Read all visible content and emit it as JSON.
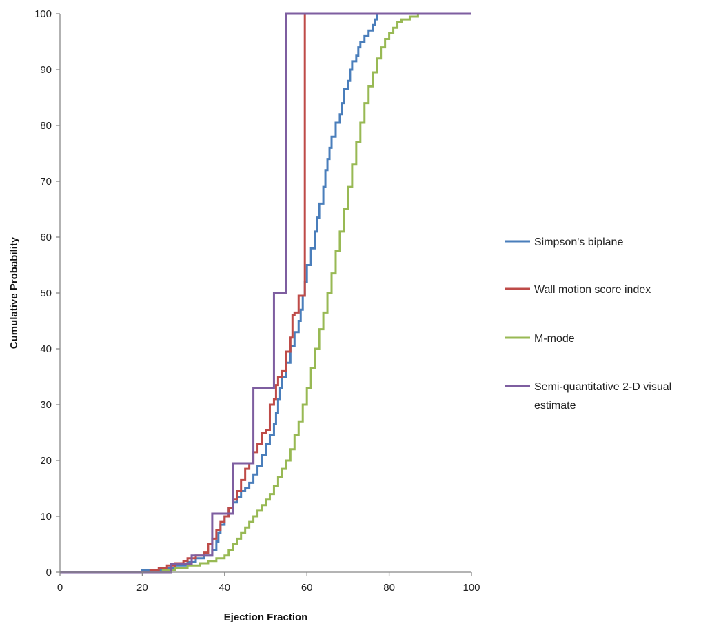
{
  "chart_data": {
    "type": "line",
    "title": "",
    "xlabel": "Ejection Fraction",
    "ylabel": "Cumulative Probability",
    "xlim": [
      0,
      100
    ],
    "ylim": [
      0,
      100
    ],
    "x_ticks": [
      0,
      20,
      40,
      60,
      80,
      100
    ],
    "y_ticks": [
      0,
      10,
      20,
      30,
      40,
      50,
      60,
      70,
      80,
      90,
      100
    ],
    "x_tick_labels": [
      "0",
      "20",
      "40",
      "60",
      "80",
      "100"
    ],
    "y_tick_labels": [
      "0",
      "10",
      "20",
      "30",
      "40",
      "50",
      "60",
      "70",
      "80",
      "90",
      "100"
    ],
    "grid": false,
    "legend_position": "right",
    "step": true,
    "series": [
      {
        "name": "Simpson's biplane",
        "color": "#4a7ebb",
        "points": [
          [
            0,
            0
          ],
          [
            20,
            0
          ],
          [
            20,
            0.4
          ],
          [
            25,
            0.4
          ],
          [
            25,
            0.8
          ],
          [
            28,
            0.8
          ],
          [
            28,
            1.2
          ],
          [
            31,
            1.2
          ],
          [
            31,
            1.8
          ],
          [
            33,
            1.8
          ],
          [
            33,
            2.5
          ],
          [
            35,
            2.5
          ],
          [
            35,
            3
          ],
          [
            37,
            3
          ],
          [
            37,
            4
          ],
          [
            38,
            4
          ],
          [
            38,
            5.5
          ],
          [
            38.5,
            5.5
          ],
          [
            38.5,
            7
          ],
          [
            39,
            7
          ],
          [
            39,
            8.5
          ],
          [
            40,
            8.5
          ],
          [
            40,
            10
          ],
          [
            41,
            10
          ],
          [
            41,
            11.5
          ],
          [
            42,
            11.5
          ],
          [
            42,
            12.5
          ],
          [
            43,
            12.5
          ],
          [
            43,
            13.5
          ],
          [
            44,
            13.5
          ],
          [
            44,
            14.5
          ],
          [
            45,
            14.5
          ],
          [
            45,
            15
          ],
          [
            46,
            15
          ],
          [
            46,
            16
          ],
          [
            47,
            16
          ],
          [
            47,
            17.5
          ],
          [
            48,
            17.5
          ],
          [
            48,
            19
          ],
          [
            49,
            19
          ],
          [
            49,
            21
          ],
          [
            50,
            21
          ],
          [
            50,
            23
          ],
          [
            51,
            23
          ],
          [
            51,
            24.5
          ],
          [
            52,
            24.5
          ],
          [
            52,
            26.5
          ],
          [
            52.5,
            26.5
          ],
          [
            52.5,
            28.5
          ],
          [
            53,
            28.5
          ],
          [
            53,
            31
          ],
          [
            53.5,
            31
          ],
          [
            53.5,
            33
          ],
          [
            54,
            33
          ],
          [
            54,
            35
          ],
          [
            55,
            35
          ],
          [
            55,
            37.5
          ],
          [
            56,
            37.5
          ],
          [
            56,
            40.5
          ],
          [
            57,
            40.5
          ],
          [
            57,
            43
          ],
          [
            58,
            43
          ],
          [
            58,
            45
          ],
          [
            58.5,
            45
          ],
          [
            58.5,
            47
          ],
          [
            59,
            47
          ],
          [
            59,
            49.5
          ],
          [
            59.5,
            49.5
          ],
          [
            59.5,
            52
          ],
          [
            60,
            52
          ],
          [
            60,
            55
          ],
          [
            61,
            55
          ],
          [
            61,
            58
          ],
          [
            62,
            58
          ],
          [
            62,
            61
          ],
          [
            62.5,
            61
          ],
          [
            62.5,
            63.5
          ],
          [
            63,
            63.5
          ],
          [
            63,
            66
          ],
          [
            64,
            66
          ],
          [
            64,
            69
          ],
          [
            64.5,
            69
          ],
          [
            64.5,
            72
          ],
          [
            65,
            72
          ],
          [
            65,
            74
          ],
          [
            65.5,
            74
          ],
          [
            65.5,
            76
          ],
          [
            66,
            76
          ],
          [
            66,
            78
          ],
          [
            67,
            78
          ],
          [
            67,
            80.5
          ],
          [
            68,
            80.5
          ],
          [
            68,
            82
          ],
          [
            68.5,
            82
          ],
          [
            68.5,
            84
          ],
          [
            69,
            84
          ],
          [
            69,
            86.5
          ],
          [
            70,
            86.5
          ],
          [
            70,
            88
          ],
          [
            70.5,
            88
          ],
          [
            70.5,
            90
          ],
          [
            71,
            90
          ],
          [
            71,
            91.5
          ],
          [
            72,
            91.5
          ],
          [
            72,
            92.5
          ],
          [
            72.5,
            92.5
          ],
          [
            72.5,
            94
          ],
          [
            73,
            94
          ],
          [
            73,
            95
          ],
          [
            74,
            95
          ],
          [
            74,
            96
          ],
          [
            75,
            96
          ],
          [
            75,
            97
          ],
          [
            76,
            97
          ],
          [
            76,
            98
          ],
          [
            76.5,
            98
          ],
          [
            76.5,
            99
          ],
          [
            77,
            99
          ],
          [
            77,
            100
          ],
          [
            100,
            100
          ]
        ]
      },
      {
        "name": "Wall motion score index",
        "color": "#be4b48",
        "points": [
          [
            0,
            0
          ],
          [
            22,
            0
          ],
          [
            22,
            0.4
          ],
          [
            24,
            0.4
          ],
          [
            24,
            0.8
          ],
          [
            26,
            0.8
          ],
          [
            26,
            1.2
          ],
          [
            28,
            1.2
          ],
          [
            28,
            1.6
          ],
          [
            30,
            1.6
          ],
          [
            30,
            2
          ],
          [
            31,
            2
          ],
          [
            31,
            2.5
          ],
          [
            33,
            2.5
          ],
          [
            33,
            3
          ],
          [
            35,
            3
          ],
          [
            35,
            3.5
          ],
          [
            36,
            3.5
          ],
          [
            36,
            5
          ],
          [
            37,
            5
          ],
          [
            37,
            6
          ],
          [
            38,
            6
          ],
          [
            38,
            7.5
          ],
          [
            39,
            7.5
          ],
          [
            39,
            9
          ],
          [
            40,
            9
          ],
          [
            40,
            10
          ],
          [
            41,
            10
          ],
          [
            41,
            11.5
          ],
          [
            42,
            11.5
          ],
          [
            42,
            13
          ],
          [
            43,
            13
          ],
          [
            43,
            14.5
          ],
          [
            44,
            14.5
          ],
          [
            44,
            16.5
          ],
          [
            45,
            16.5
          ],
          [
            45,
            18.5
          ],
          [
            46,
            18.5
          ],
          [
            46,
            19.5
          ],
          [
            47,
            19.5
          ],
          [
            47,
            21.5
          ],
          [
            48,
            21.5
          ],
          [
            48,
            23
          ],
          [
            49,
            23
          ],
          [
            49,
            25
          ],
          [
            50,
            25
          ],
          [
            50,
            25.5
          ],
          [
            51,
            25.5
          ],
          [
            51,
            30
          ],
          [
            52,
            30
          ],
          [
            52,
            31
          ],
          [
            52.5,
            31
          ],
          [
            52.5,
            33.5
          ],
          [
            53,
            33.5
          ],
          [
            53,
            35
          ],
          [
            54,
            35
          ],
          [
            54,
            36
          ],
          [
            55,
            36
          ],
          [
            55,
            39.5
          ],
          [
            56,
            39.5
          ],
          [
            56,
            42
          ],
          [
            56.5,
            42
          ],
          [
            56.5,
            46
          ],
          [
            57,
            46
          ],
          [
            57,
            46.5
          ],
          [
            58,
            46.5
          ],
          [
            58,
            49.5
          ],
          [
            59.5,
            49.5
          ],
          [
            59.5,
            100
          ],
          [
            100,
            100
          ]
        ]
      },
      {
        "name": "M-mode",
        "color": "#98b954",
        "points": [
          [
            0,
            0
          ],
          [
            25,
            0
          ],
          [
            25,
            0.4
          ],
          [
            28,
            0.4
          ],
          [
            28,
            0.8
          ],
          [
            31,
            0.8
          ],
          [
            31,
            1.2
          ],
          [
            34,
            1.2
          ],
          [
            34,
            1.6
          ],
          [
            36,
            1.6
          ],
          [
            36,
            2
          ],
          [
            38,
            2
          ],
          [
            38,
            2.5
          ],
          [
            40,
            2.5
          ],
          [
            40,
            3
          ],
          [
            41,
            3
          ],
          [
            41,
            4
          ],
          [
            42,
            4
          ],
          [
            42,
            5
          ],
          [
            43,
            5
          ],
          [
            43,
            6
          ],
          [
            44,
            6
          ],
          [
            44,
            7
          ],
          [
            45,
            7
          ],
          [
            45,
            8
          ],
          [
            46,
            8
          ],
          [
            46,
            9
          ],
          [
            47,
            9
          ],
          [
            47,
            10
          ],
          [
            48,
            10
          ],
          [
            48,
            11
          ],
          [
            49,
            11
          ],
          [
            49,
            12
          ],
          [
            50,
            12
          ],
          [
            50,
            13
          ],
          [
            51,
            13
          ],
          [
            51,
            14
          ],
          [
            52,
            14
          ],
          [
            52,
            15.5
          ],
          [
            53,
            15.5
          ],
          [
            53,
            17
          ],
          [
            54,
            17
          ],
          [
            54,
            18.5
          ],
          [
            55,
            18.5
          ],
          [
            55,
            20
          ],
          [
            56,
            20
          ],
          [
            56,
            22
          ],
          [
            57,
            22
          ],
          [
            57,
            24.5
          ],
          [
            58,
            24.5
          ],
          [
            58,
            27
          ],
          [
            59,
            27
          ],
          [
            59,
            30
          ],
          [
            60,
            30
          ],
          [
            60,
            33
          ],
          [
            61,
            33
          ],
          [
            61,
            36.5
          ],
          [
            62,
            36.5
          ],
          [
            62,
            40
          ],
          [
            63,
            40
          ],
          [
            63,
            43.5
          ],
          [
            64,
            43.5
          ],
          [
            64,
            46.5
          ],
          [
            65,
            46.5
          ],
          [
            65,
            50
          ],
          [
            66,
            50
          ],
          [
            66,
            53.5
          ],
          [
            67,
            53.5
          ],
          [
            67,
            57.5
          ],
          [
            68,
            57.5
          ],
          [
            68,
            61
          ],
          [
            69,
            61
          ],
          [
            69,
            65
          ],
          [
            70,
            65
          ],
          [
            70,
            69
          ],
          [
            71,
            69
          ],
          [
            71,
            73
          ],
          [
            72,
            73
          ],
          [
            72,
            77
          ],
          [
            73,
            77
          ],
          [
            73,
            80.5
          ],
          [
            74,
            80.5
          ],
          [
            74,
            84
          ],
          [
            75,
            84
          ],
          [
            75,
            87
          ],
          [
            76,
            87
          ],
          [
            76,
            89.5
          ],
          [
            77,
            89.5
          ],
          [
            77,
            92
          ],
          [
            78,
            92
          ],
          [
            78,
            94
          ],
          [
            79,
            94
          ],
          [
            79,
            95.5
          ],
          [
            80,
            95.5
          ],
          [
            80,
            96.5
          ],
          [
            81,
            96.5
          ],
          [
            81,
            97.5
          ],
          [
            82,
            97.5
          ],
          [
            82,
            98.5
          ],
          [
            83,
            98.5
          ],
          [
            83,
            99
          ],
          [
            85,
            99
          ],
          [
            85,
            99.5
          ],
          [
            87,
            99.5
          ],
          [
            87,
            100
          ],
          [
            100,
            100
          ]
        ]
      },
      {
        "name": "Semi-quantitative 2-D visual estimate",
        "color": "#7e5ea0",
        "points": [
          [
            0,
            0
          ],
          [
            27,
            0
          ],
          [
            27,
            1.5
          ],
          [
            32,
            1.5
          ],
          [
            32,
            3
          ],
          [
            37,
            3
          ],
          [
            37,
            10.5
          ],
          [
            42,
            10.5
          ],
          [
            42,
            19.5
          ],
          [
            47,
            19.5
          ],
          [
            47,
            33
          ],
          [
            52,
            33
          ],
          [
            52,
            50
          ],
          [
            55,
            50
          ],
          [
            55,
            100
          ],
          [
            100,
            100
          ]
        ]
      }
    ]
  }
}
